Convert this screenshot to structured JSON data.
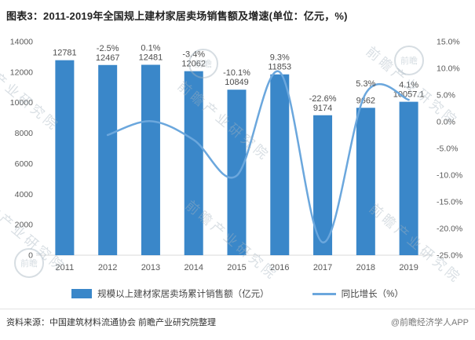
{
  "title": "图表3：2011-2019年全国规上建材家居卖场销售额及增速(单位：亿元，%)",
  "chart_data": {
    "type": "bar",
    "title": "图表3：2011-2019年全国规上建材家居卖场销售额及增速(单位：亿元，%)",
    "categories": [
      "2011",
      "2012",
      "2013",
      "2014",
      "2015",
      "2016",
      "2017",
      "2018",
      "2019"
    ],
    "series": [
      {
        "name": "规模以上建材家居卖场累计销售额（亿元）",
        "type": "bar",
        "axis": "left",
        "values": [
          12781,
          12467,
          12481,
          12062,
          10849,
          11853,
          9174,
          9662,
          10057.1
        ]
      },
      {
        "name": "同比增长（%）",
        "type": "line",
        "axis": "right",
        "values": [
          null,
          -2.5,
          0.1,
          -3.4,
          -10.1,
          9.3,
          -22.6,
          5.3,
          4.1
        ]
      }
    ],
    "left_axis": {
      "min": 0,
      "max": 14000,
      "step": 2000
    },
    "right_axis": {
      "min": -25,
      "max": 15,
      "step": 5,
      "suffix": "%"
    },
    "grid": false,
    "legend_position": "bottom"
  },
  "legend": {
    "bar_label": "规模以上建材家居卖场累计销售额（亿元）",
    "line_label": "同比增长（%）"
  },
  "footer": {
    "source": "资料来源：中国建筑材料流通协会 前瞻产业研究院整理",
    "credit": "@前瞻经济学人APP"
  },
  "watermark": {
    "text": "前瞻产业研究院",
    "logo_text": "前瞻"
  },
  "colors": {
    "bar": "#3a87c9",
    "line": "#6ba7dd",
    "axis_text": "#595959",
    "value_text": "#4d4d4d"
  }
}
